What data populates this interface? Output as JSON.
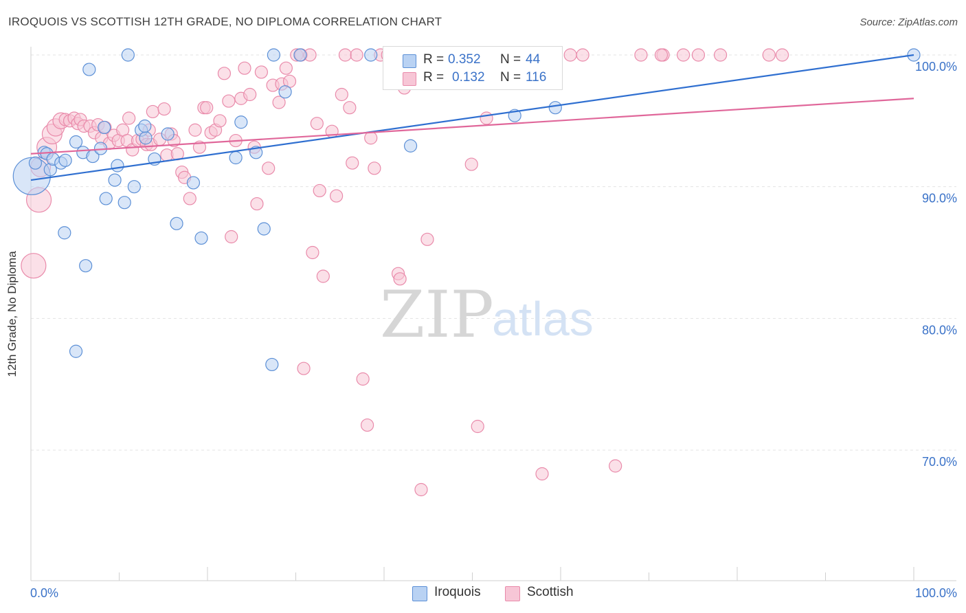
{
  "title": "IROQUOIS VS SCOTTISH 12TH GRADE, NO DIPLOMA CORRELATION CHART",
  "source": "Source: ZipAtlas.com",
  "watermark": {
    "zip": "ZIP",
    "atlas": "atlas"
  },
  "legend": {
    "iroquois": {
      "r_label": "R =",
      "r_value": "0.352",
      "n_label": "N =",
      "n_value": "44"
    },
    "scottish": {
      "r_label": "R =",
      "r_value": "0.132",
      "n_label": "N =",
      "n_value": "116"
    }
  },
  "colors": {
    "iroquois_fill": "#b9d2f3",
    "iroquois_edge": "#5b8fd6",
    "iroquois_line": "#2f6fd0",
    "scottish_fill": "#f7c6d6",
    "scottish_edge": "#e98aaa",
    "scottish_line": "#e0679a",
    "axis_text": "#3a72c8",
    "grid": "#e3e3e3"
  },
  "chart_data": {
    "type": "scatter",
    "title": "IROQUOIS VS SCOTTISH 12TH GRADE, NO DIPLOMA CORRELATION CHART",
    "xlabel": "",
    "ylabel": "12th Grade, No Diploma",
    "xlim": [
      0,
      100
    ],
    "ylim": [
      60,
      101.5
    ],
    "x_tick_labels": [
      "0.0%",
      "100.0%"
    ],
    "y_ticks": [
      70,
      80,
      90,
      100
    ],
    "y_tick_labels": [
      "70.0%",
      "80.0%",
      "90.0%",
      "100.0%"
    ],
    "grid": true,
    "legend_position": "top-center",
    "series": [
      {
        "name": "Iroquois",
        "r": 0.352,
        "n": 44,
        "trend": [
          [
            0,
            90.5
          ],
          [
            100,
            100.0
          ]
        ],
        "points": [
          [
            0.1,
            90.8,
            3
          ],
          [
            0.5,
            91.8,
            1
          ],
          [
            1.5,
            92.6,
            1
          ],
          [
            1.8,
            92.5,
            1
          ],
          [
            2.2,
            91.3,
            1
          ],
          [
            2.5,
            92.1,
            1
          ],
          [
            3.4,
            91.8,
            1
          ],
          [
            3.9,
            92.0,
            1
          ],
          [
            3.8,
            86.5,
            1
          ],
          [
            5.1,
            93.4,
            1
          ],
          [
            5.9,
            92.6,
            1
          ],
          [
            6.2,
            84.0,
            1
          ],
          [
            5.1,
            77.5,
            1
          ],
          [
            7.0,
            92.3,
            1
          ],
          [
            7.9,
            92.9,
            1
          ],
          [
            8.5,
            89.1,
            1
          ],
          [
            8.3,
            94.5,
            1
          ],
          [
            9.5,
            90.5,
            1
          ],
          [
            9.8,
            91.6,
            1
          ],
          [
            10.6,
            88.8,
            1
          ],
          [
            11.7,
            90.0,
            1
          ],
          [
            12.5,
            94.3,
            1
          ],
          [
            13.0,
            93.7,
            1
          ],
          [
            12.9,
            94.6,
            1
          ],
          [
            14.0,
            92.1,
            1
          ],
          [
            15.5,
            94.0,
            1
          ],
          [
            16.5,
            87.2,
            1
          ],
          [
            18.4,
            90.3,
            1
          ],
          [
            19.3,
            86.1,
            1
          ],
          [
            23.2,
            92.2,
            1
          ],
          [
            23.8,
            94.9,
            1
          ],
          [
            25.5,
            92.6,
            1
          ],
          [
            26.4,
            86.8,
            1
          ],
          [
            27.3,
            76.5,
            1
          ],
          [
            27.5,
            100.0,
            1
          ],
          [
            28.8,
            97.2,
            1
          ],
          [
            30.5,
            100.0,
            1
          ],
          [
            38.5,
            100.0,
            1
          ],
          [
            43.0,
            93.1,
            1
          ],
          [
            54.8,
            95.4,
            1
          ],
          [
            59.4,
            96.0,
            1
          ],
          [
            11.0,
            100.0,
            1
          ],
          [
            6.6,
            98.9,
            1
          ],
          [
            100.0,
            100.0,
            1
          ]
        ]
      },
      {
        "name": "Scottish",
        "r": 0.132,
        "n": 116,
        "trend": [
          [
            0,
            92.5
          ],
          [
            100,
            96.7
          ]
        ],
        "points": [
          [
            0.3,
            84.0,
            2.0
          ],
          [
            0.9,
            89.0,
            2.0
          ],
          [
            1.1,
            91.5,
            1.6
          ],
          [
            1.8,
            93.0,
            1.6
          ],
          [
            2.4,
            94.0,
            1.6
          ],
          [
            2.8,
            94.5,
            1.4
          ],
          [
            3.4,
            95.0,
            1.3
          ],
          [
            3.9,
            95.1,
            1.0
          ],
          [
            4.4,
            95.0,
            1.0
          ],
          [
            4.9,
            95.2,
            1.0
          ],
          [
            5.3,
            94.8,
            1.0
          ],
          [
            5.6,
            95.1,
            1.0
          ],
          [
            6.0,
            94.6,
            1.0
          ],
          [
            6.7,
            94.6,
            1.0
          ],
          [
            7.2,
            94.1,
            1.0
          ],
          [
            7.6,
            94.7,
            1.0
          ],
          [
            8.0,
            93.7,
            1.0
          ],
          [
            8.4,
            94.5,
            1.0
          ],
          [
            8.9,
            93.3,
            1.0
          ],
          [
            9.4,
            93.9,
            1.0
          ],
          [
            9.9,
            93.5,
            1.0
          ],
          [
            10.4,
            94.3,
            1.0
          ],
          [
            10.9,
            93.5,
            1.0
          ],
          [
            11.1,
            95.2,
            1.0
          ],
          [
            11.5,
            92.8,
            1.0
          ],
          [
            12.1,
            93.5,
            1.0
          ],
          [
            12.6,
            93.6,
            1.0
          ],
          [
            13.1,
            93.2,
            1.0
          ],
          [
            13.4,
            94.3,
            1.0
          ],
          [
            13.6,
            93.2,
            1.0
          ],
          [
            13.8,
            95.7,
            1.0
          ],
          [
            14.6,
            93.6,
            1.0
          ],
          [
            15.1,
            95.9,
            1.0
          ],
          [
            15.4,
            92.4,
            1.0
          ],
          [
            15.9,
            94.0,
            1.0
          ],
          [
            16.2,
            93.5,
            1.0
          ],
          [
            16.6,
            92.5,
            1.0
          ],
          [
            17.1,
            91.1,
            1.0
          ],
          [
            17.4,
            90.7,
            1.0
          ],
          [
            18.0,
            89.1,
            1.0
          ],
          [
            18.6,
            94.3,
            1.0
          ],
          [
            19.1,
            93.0,
            1.0
          ],
          [
            19.6,
            96.0,
            1.0
          ],
          [
            19.9,
            96.0,
            1.0
          ],
          [
            20.4,
            94.1,
            1.0
          ],
          [
            20.9,
            94.3,
            1.0
          ],
          [
            21.4,
            95.0,
            1.0
          ],
          [
            21.9,
            98.6,
            1.0
          ],
          [
            22.4,
            96.5,
            1.0
          ],
          [
            22.7,
            86.2,
            1.0
          ],
          [
            23.2,
            93.5,
            1.0
          ],
          [
            23.8,
            96.7,
            1.0
          ],
          [
            24.2,
            99.0,
            1.0
          ],
          [
            24.8,
            97.0,
            1.0
          ],
          [
            25.3,
            93.0,
            1.0
          ],
          [
            25.6,
            88.7,
            1.0
          ],
          [
            26.1,
            98.7,
            1.0
          ],
          [
            26.9,
            91.4,
            1.0
          ],
          [
            27.4,
            97.7,
            1.0
          ],
          [
            28.1,
            96.4,
            1.0
          ],
          [
            28.4,
            97.8,
            1.0
          ],
          [
            28.9,
            99.0,
            1.0
          ],
          [
            29.3,
            98.0,
            1.0
          ],
          [
            30.1,
            100.0,
            1.0
          ],
          [
            30.6,
            100.0,
            1.0
          ],
          [
            30.9,
            76.2,
            1.0
          ],
          [
            31.6,
            100.0,
            1.0
          ],
          [
            31.9,
            85.0,
            1.0
          ],
          [
            32.4,
            94.8,
            1.0
          ],
          [
            32.7,
            89.7,
            1.0
          ],
          [
            33.1,
            83.2,
            1.0
          ],
          [
            34.1,
            94.2,
            1.0
          ],
          [
            34.6,
            89.3,
            1.0
          ],
          [
            35.2,
            97.0,
            1.0
          ],
          [
            35.6,
            100.0,
            1.0
          ],
          [
            36.1,
            96.0,
            1.0
          ],
          [
            36.4,
            91.8,
            1.0
          ],
          [
            36.9,
            100.0,
            1.0
          ],
          [
            37.6,
            75.4,
            1.0
          ],
          [
            38.1,
            71.9,
            1.0
          ],
          [
            38.5,
            93.7,
            1.0
          ],
          [
            38.9,
            91.4,
            1.0
          ],
          [
            39.6,
            100.0,
            1.0
          ],
          [
            40.4,
            100.0,
            1.0
          ],
          [
            41.1,
            100.0,
            1.0
          ],
          [
            41.6,
            83.4,
            1.0
          ],
          [
            41.8,
            83.0,
            1.0
          ],
          [
            42.3,
            97.5,
            1.0
          ],
          [
            43.1,
            100.0,
            1.0
          ],
          [
            44.2,
            67.0,
            1.0
          ],
          [
            44.9,
            86.0,
            1.0
          ],
          [
            45.6,
            100.0,
            1.0
          ],
          [
            47.1,
            100.0,
            1.0
          ],
          [
            48.6,
            100.0,
            1.0
          ],
          [
            49.9,
            91.7,
            1.0
          ],
          [
            50.6,
            71.8,
            1.0
          ],
          [
            51.4,
            100.0,
            1.0
          ],
          [
            51.6,
            95.2,
            1.0
          ],
          [
            52.3,
            100.0,
            1.0
          ],
          [
            53.9,
            100.0,
            1.0
          ],
          [
            55.6,
            100.0,
            1.0
          ],
          [
            57.9,
            68.2,
            1.0
          ],
          [
            58.6,
            100.0,
            1.0
          ],
          [
            61.1,
            100.0,
            1.0
          ],
          [
            62.5,
            100.0,
            1.0
          ],
          [
            66.2,
            68.8,
            1.0
          ],
          [
            69.1,
            100.0,
            1.0
          ],
          [
            71.6,
            100.0,
            1.0
          ],
          [
            73.9,
            100.0,
            1.0
          ],
          [
            75.6,
            100.0,
            1.0
          ],
          [
            78.1,
            100.0,
            1.0
          ],
          [
            83.6,
            100.0,
            1.0
          ],
          [
            85.1,
            100.0,
            1.0
          ],
          [
            71.4,
            100.0,
            1.0
          ]
        ]
      }
    ]
  }
}
